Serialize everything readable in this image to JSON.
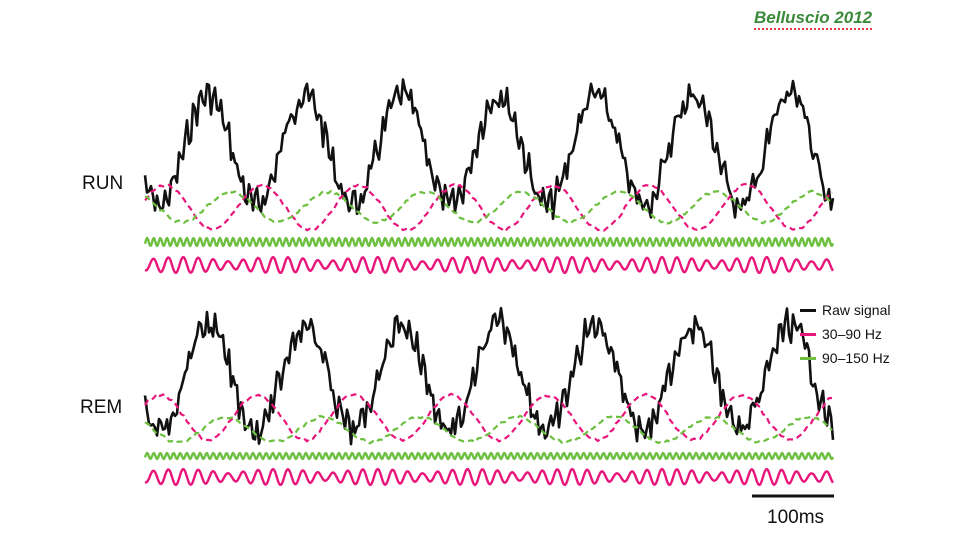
{
  "citation": "Belluscio 2012",
  "panels": [
    {
      "label": "RUN"
    },
    {
      "label": "REM"
    }
  ],
  "legend": [
    {
      "label": "Raw signal",
      "color": "#111111"
    },
    {
      "label": "30–90 Hz",
      "color": "#e8157a"
    },
    {
      "label": "90–150 Hz",
      "color": "#6cbf3f"
    }
  ],
  "scalebar": {
    "label": "100ms"
  },
  "colors": {
    "raw": "#111111",
    "gamma_slow": "#e8157a",
    "gamma_fast": "#6cbf3f"
  }
}
